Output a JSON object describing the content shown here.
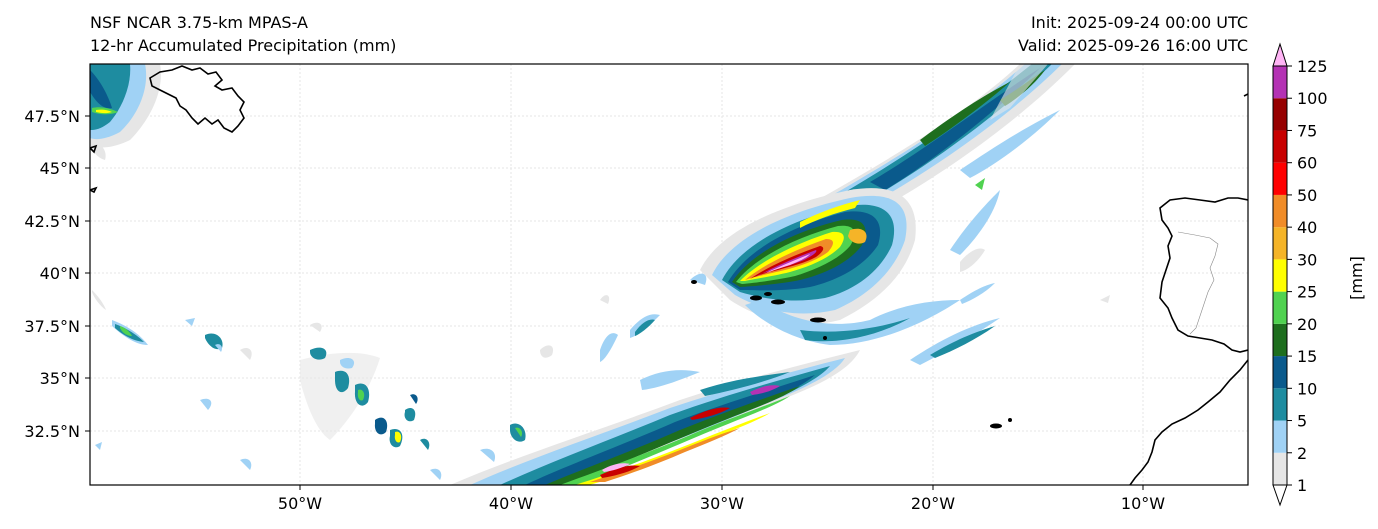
{
  "header": {
    "model": "NSF NCAR 3.75-km MPAS-A",
    "field": "12-hr Accumulated Precipitation (mm)",
    "init": "Init: 2025-09-24 00:00 UTC",
    "valid": "Valid: 2025-09-26 16:00 UTC"
  },
  "axes": {
    "lon_ticks": [
      "50°W",
      "40°W",
      "30°W",
      "20°W",
      "10°W"
    ],
    "lat_ticks": [
      "47.5°N",
      "45°N",
      "42.5°N",
      "40°N",
      "37.5°N",
      "35°N",
      "32.5°N"
    ]
  },
  "colorbar": {
    "unit_label": "[mm]",
    "levels": [
      "1",
      "2",
      "5",
      "10",
      "15",
      "20",
      "25",
      "30",
      "40",
      "50",
      "60",
      "75",
      "100",
      "125"
    ],
    "colors": [
      "#e6e6e6",
      "#a0d2f5",
      "#1e8ca0",
      "#0a5a8c",
      "#1e6e1e",
      "#50d250",
      "#ffff00",
      "#f5b428",
      "#f08c28",
      "#ff0000",
      "#c80000",
      "#960000",
      "#b432b4",
      "#ffb4f5"
    ]
  }
}
